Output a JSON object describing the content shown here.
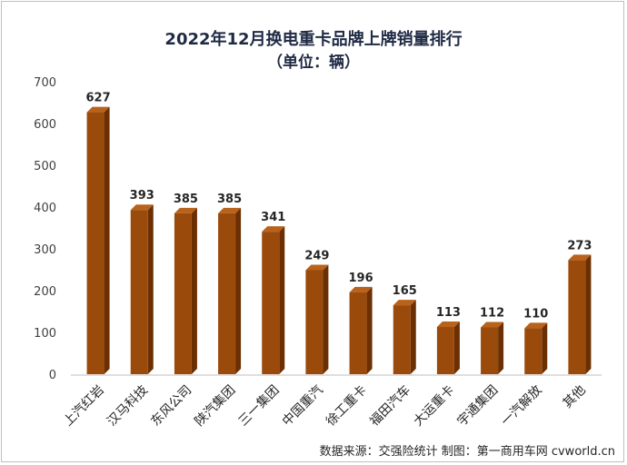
{
  "chart_data": {
    "type": "bar",
    "title": "2022年12月换电重卡品牌上牌销量排行",
    "subtitle": "（单位：辆）",
    "categories": [
      "上汽红岩",
      "汉马科技",
      "东风公司",
      "陕汽集团",
      "三一集团",
      "中国重汽",
      "徐工重卡",
      "福田汽车",
      "大运重卡",
      "宇通集团",
      "一汽解放",
      "其他"
    ],
    "values": [
      627,
      393,
      385,
      385,
      341,
      249,
      196,
      165,
      113,
      112,
      110,
      273
    ],
    "ylim": [
      0,
      700
    ],
    "yticks": [
      0,
      100,
      200,
      300,
      400,
      500,
      600,
      700
    ],
    "xlabel": "",
    "ylabel": "",
    "grid": false,
    "legend": "none",
    "source": "数据来源：交强险统计  制图：第一商用车网 cvworld.cn",
    "colors": {
      "bar_front": "#9a4a0a",
      "bar_side": "#6b2f02",
      "bar_top": "#b8621c",
      "axis": "#bfbfbf"
    }
  }
}
